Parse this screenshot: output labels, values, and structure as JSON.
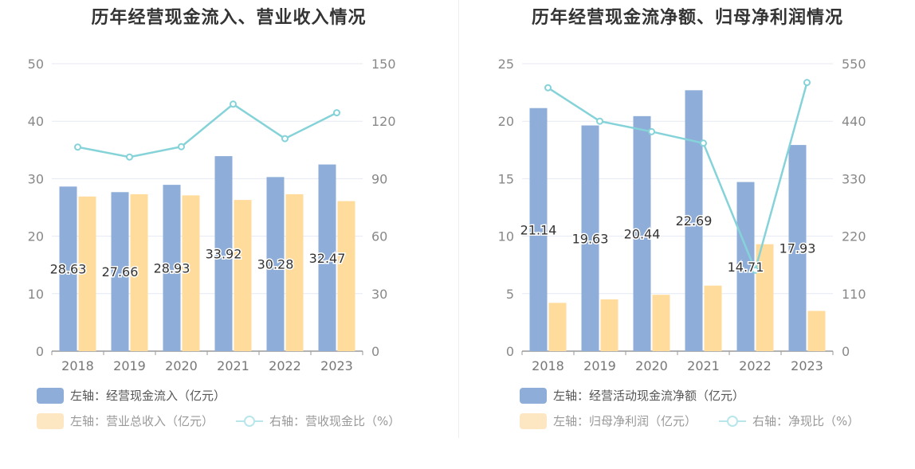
{
  "chart_data": [
    {
      "type": "bar",
      "title": "历年经营现金流入、营业收入情况",
      "categories": [
        "2018",
        "2019",
        "2020",
        "2021",
        "2022",
        "2023"
      ],
      "left_axis": {
        "ylim": [
          0,
          50
        ],
        "ticks": [
          "0",
          "10",
          "20",
          "30",
          "40",
          "50"
        ]
      },
      "right_axis": {
        "ylim": [
          0,
          150
        ],
        "ticks": [
          "0",
          "30",
          "60",
          "90",
          "120",
          "150"
        ]
      },
      "series": [
        {
          "name": "左轴：经营现金流入（亿元）",
          "type": "bar",
          "axis": "left",
          "color": "#8eadd9",
          "values": [
            28.63,
            27.66,
            28.93,
            33.92,
            30.28,
            32.47
          ],
          "labels": [
            "28.63",
            "27.66",
            "28.93",
            "33.92",
            "30.28",
            "32.47"
          ]
        },
        {
          "name": "左轴：营业总收入（亿元）",
          "type": "bar",
          "axis": "left",
          "color": "#ffdb9c",
          "values": [
            26.9,
            27.3,
            27.1,
            26.3,
            27.3,
            26.1
          ]
        },
        {
          "name": "右轴：营收现金比（%）",
          "type": "line",
          "axis": "right",
          "color": "#85d3d9",
          "values": [
            106.5,
            101.3,
            106.7,
            128.9,
            110.9,
            124.4
          ]
        }
      ],
      "grid": true,
      "legend_position": "bottom-left"
    },
    {
      "type": "bar",
      "title": "历年经营现金流净额、归母净利润情况",
      "categories": [
        "2018",
        "2019",
        "2020",
        "2021",
        "2022",
        "2023"
      ],
      "left_axis": {
        "ylim": [
          0,
          25
        ],
        "ticks": [
          "0",
          "5",
          "10",
          "15",
          "20",
          "25"
        ]
      },
      "right_axis": {
        "ylim": [
          0,
          550
        ],
        "ticks": [
          "0",
          "110",
          "220",
          "330",
          "440",
          "550"
        ]
      },
      "series": [
        {
          "name": "左轴：经营活动现金流净额（亿元）",
          "type": "bar",
          "axis": "left",
          "color": "#8eadd9",
          "values": [
            21.14,
            19.63,
            20.44,
            22.69,
            14.71,
            17.93
          ],
          "labels": [
            "21.14",
            "19.63",
            "20.44",
            "22.69",
            "14.71",
            "17.93"
          ]
        },
        {
          "name": "左轴：归母净利润（亿元）",
          "type": "bar",
          "axis": "left",
          "color": "#ffdb9c",
          "values": [
            4.2,
            4.5,
            4.9,
            5.7,
            9.3,
            3.5
          ]
        },
        {
          "name": "右轴：净现比（%）",
          "type": "line",
          "axis": "right",
          "color": "#85d3d9",
          "values": [
            504,
            440,
            420,
            398,
            155,
            514
          ]
        }
      ],
      "grid": true,
      "legend_position": "bottom-left"
    }
  ]
}
